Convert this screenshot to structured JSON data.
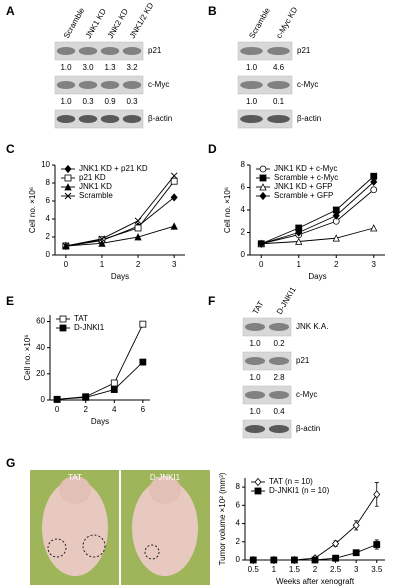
{
  "panel_labels": [
    "A",
    "B",
    "C",
    "D",
    "E",
    "F",
    "G"
  ],
  "blots": [
    {
      "lanes": [
        "Scramble",
        "JNK1 KD",
        "JNK2 KD",
        "JNK1/2 KD"
      ],
      "rows": [
        {
          "label": "p21",
          "values": [
            "1.0",
            "3.0",
            "1.3",
            "3.2"
          ]
        },
        {
          "label": "c-Myc",
          "values": [
            "1.0",
            "0.3",
            "0.9",
            "0.3"
          ]
        },
        {
          "label": "β-actin"
        }
      ]
    },
    {
      "lanes": [
        "Scramble",
        "c-Myc KD"
      ],
      "rows": [
        {
          "label": "p21",
          "values": [
            "1.0",
            "4.6"
          ]
        },
        {
          "label": "c-Myc",
          "values": [
            "1.0",
            "0.1"
          ]
        },
        {
          "label": "β-actin"
        }
      ]
    },
    {
      "lanes": [
        "TAT",
        "D-JNKI1"
      ],
      "rows": [
        {
          "label": "JNK K.A.",
          "values": [
            "1.0",
            "0.2"
          ]
        },
        {
          "label": "p21",
          "values": [
            "1.0",
            "2.8"
          ]
        },
        {
          "label": "c-Myc",
          "values": [
            "1.0",
            "0.4"
          ]
        },
        {
          "label": "β-actin"
        }
      ]
    }
  ],
  "photo": {
    "labels": [
      "TAT",
      "D-JNKI1"
    ]
  },
  "chart_data": [
    {
      "type": "line",
      "xlabel": "Days",
      "ylabel": "Cell no. ×10⁶",
      "x": [
        0,
        1,
        2,
        3
      ],
      "xlim": [
        -0.3,
        3.3
      ],
      "xticks": [
        0,
        1,
        2,
        3
      ],
      "ylim": [
        0,
        10
      ],
      "yticks": [
        0,
        2,
        4,
        6,
        8,
        10
      ],
      "series": [
        {
          "name": "JNK1 KD + p21 KD",
          "marker": "diamond-filled",
          "color": "#000000",
          "values": [
            1,
            1.6,
            3.2,
            6.4
          ]
        },
        {
          "name": "p21 KD",
          "marker": "square-open",
          "color": "#000000",
          "values": [
            1,
            1.7,
            3.0,
            8.2
          ]
        },
        {
          "name": "JNK1 KD",
          "marker": "triangle-filled",
          "color": "#000000",
          "values": [
            1,
            1.3,
            2.0,
            3.2
          ]
        },
        {
          "name": "Scramble",
          "marker": "x",
          "color": "#000000",
          "values": [
            1,
            1.8,
            3.8,
            8.8
          ]
        }
      ]
    },
    {
      "type": "line",
      "xlabel": "Days",
      "ylabel": "Cell no. ×10⁶",
      "x": [
        0,
        1,
        2,
        3
      ],
      "xlim": [
        -0.3,
        3.3
      ],
      "xticks": [
        0,
        1,
        2,
        3
      ],
      "ylim": [
        0,
        8
      ],
      "yticks": [
        0,
        2,
        4,
        6,
        8
      ],
      "series": [
        {
          "name": "JNK1 KD + c-Myc",
          "marker": "circle-open",
          "color": "#000000",
          "values": [
            1,
            1.8,
            3.0,
            5.8
          ]
        },
        {
          "name": "Scramble + c-Myc",
          "marker": "square-filled",
          "color": "#000000",
          "values": [
            1,
            2.4,
            4.0,
            7.0
          ]
        },
        {
          "name": "JNK1 KD + GFP",
          "marker": "triangle-open",
          "color": "#000000",
          "values": [
            1,
            1.2,
            1.5,
            2.4
          ]
        },
        {
          "name": "Scramble + GFP",
          "marker": "diamond-filled",
          "color": "#000000",
          "values": [
            1,
            2.0,
            3.5,
            6.5
          ]
        }
      ]
    },
    {
      "type": "line",
      "xlabel": "Days",
      "ylabel": "Cell no. ×10⁶",
      "x": [
        0,
        2,
        4,
        6
      ],
      "xlim": [
        -0.5,
        6.5
      ],
      "xticks": [
        0,
        2,
        4,
        6
      ],
      "ylim": [
        0,
        65
      ],
      "yticks": [
        0,
        20,
        40,
        60
      ],
      "series": [
        {
          "name": "TAT",
          "marker": "square-open",
          "color": "#000000",
          "values": [
            0.5,
            2.5,
            13,
            58
          ]
        },
        {
          "name": "D-JNKI1",
          "marker": "square-filled",
          "color": "#000000",
          "values": [
            0.5,
            2,
            8,
            29
          ]
        }
      ]
    },
    {
      "type": "line",
      "xlabel": "Weeks after xenograft",
      "ylabel": "Tumor volume ×10² (mm³)",
      "x": [
        0.5,
        1,
        1.5,
        2,
        2.5,
        3,
        3.5
      ],
      "xlim": [
        0.3,
        3.7
      ],
      "xticks": [
        0.5,
        1,
        1.5,
        2,
        2.5,
        3,
        3.5
      ],
      "ylim": [
        0,
        9
      ],
      "yticks": [
        0,
        2,
        4,
        6,
        8
      ],
      "series": [
        {
          "name": "TAT (n = 10)",
          "marker": "diamond-open",
          "color": "#000000",
          "values": [
            0,
            0,
            0,
            0.2,
            1.8,
            3.8,
            7.2
          ],
          "errors": [
            null,
            null,
            null,
            null,
            0.3,
            0.5,
            1.3
          ]
        },
        {
          "name": "D-JNKI1 (n = 10)",
          "marker": "square-filled",
          "color": "#000000",
          "values": [
            0,
            0,
            0,
            0,
            0.2,
            0.8,
            1.7
          ],
          "errors": [
            null,
            null,
            null,
            null,
            null,
            0.3,
            0.5
          ]
        }
      ]
    }
  ]
}
